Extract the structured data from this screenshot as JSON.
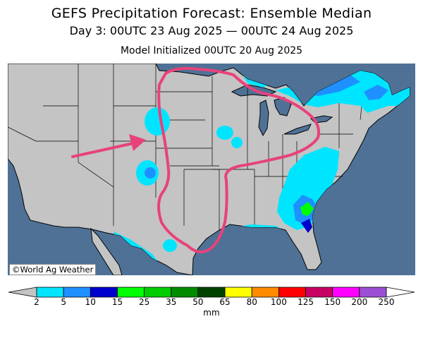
{
  "header": {
    "title": "GEFS Precipitation Forecast: Ensemble Median",
    "period": "Day 3: 00UTC 23 Aug 2025 — 00UTC 24 Aug 2025",
    "init": "Model Initialized 00UTC 20 Aug 2025"
  },
  "map": {
    "credit": "©World Ag Weather",
    "colors": {
      "ocean": "#4f7196",
      "land": "#c4c4c4",
      "borders": "#000000",
      "annotation": "#e8427a"
    }
  },
  "legend": {
    "unit": "mm",
    "ticks": [
      "2",
      "5",
      "10",
      "15",
      "25",
      "35",
      "50",
      "65",
      "80",
      "100",
      "125",
      "150",
      "200",
      "250"
    ],
    "colors": [
      "#00e5ff",
      "#1e90ff",
      "#0000cd",
      "#00ff00",
      "#00cd00",
      "#008b00",
      "#004200",
      "#ffff00",
      "#ff8c00",
      "#ff0000",
      "#c80064",
      "#ff00ff",
      "#9b4fd3"
    ]
  }
}
